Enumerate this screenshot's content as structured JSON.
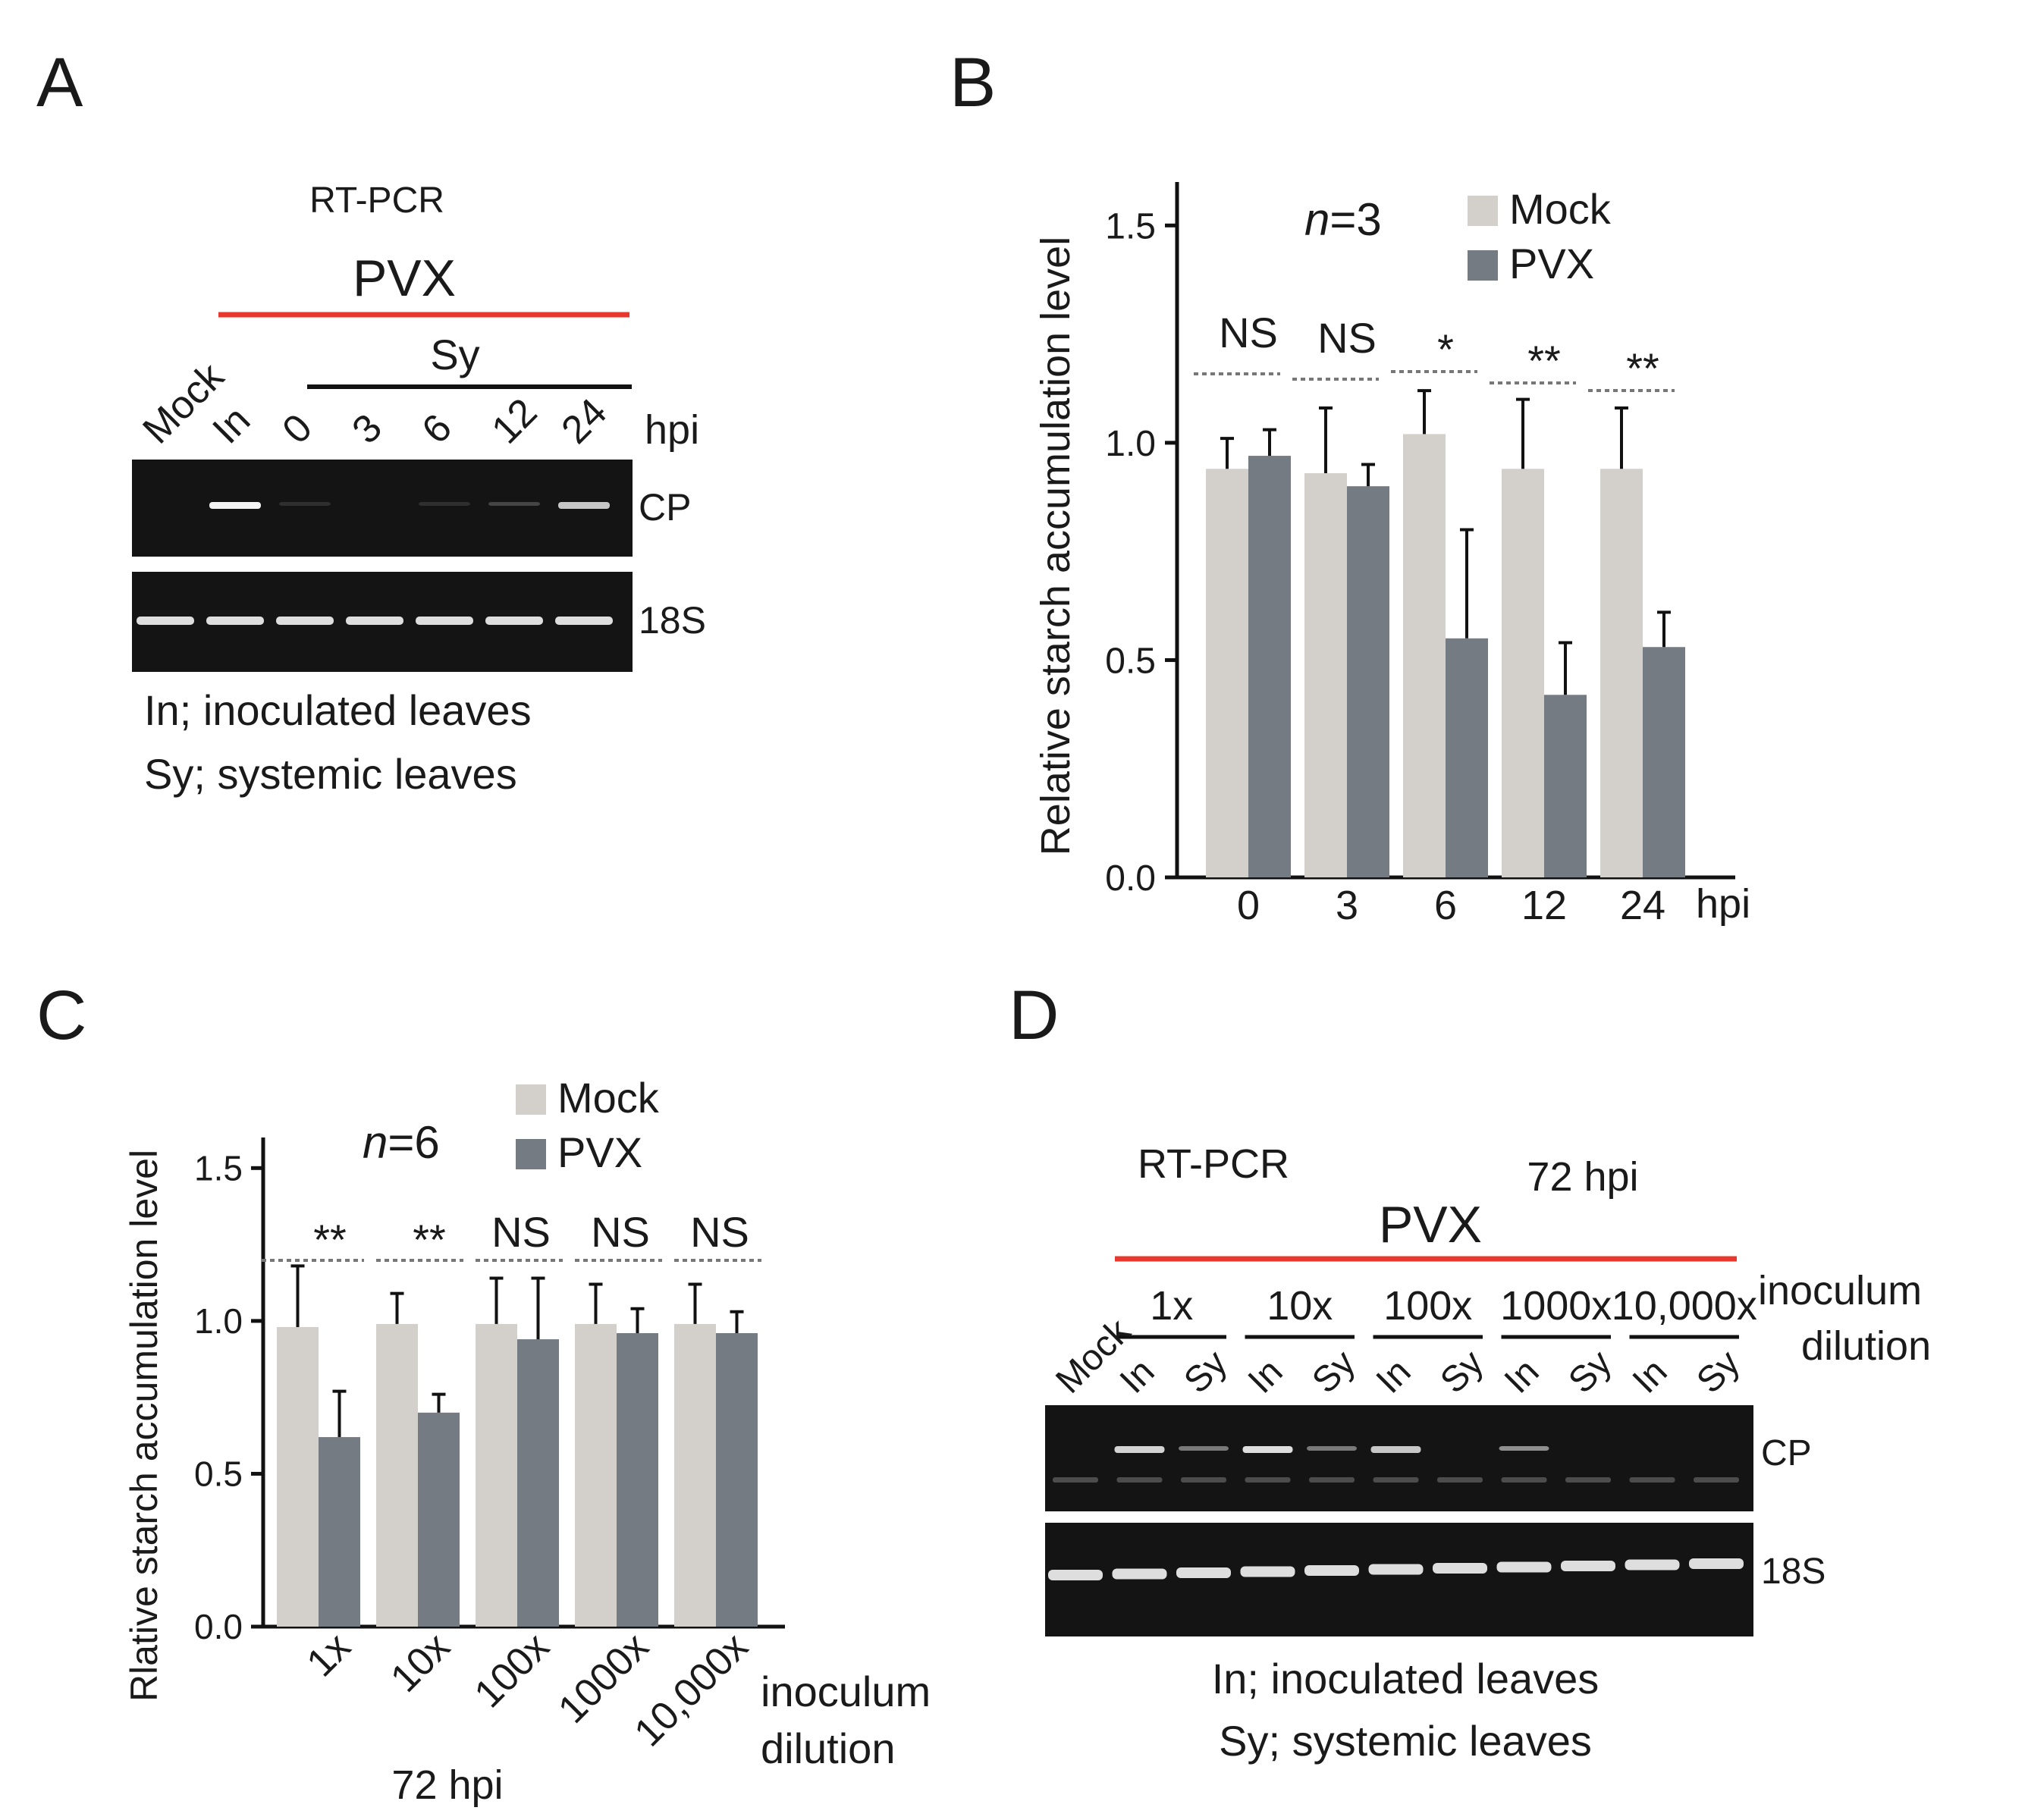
{
  "colors": {
    "mock": "#d3d0cc",
    "pvx": "#747b83",
    "accent_red": "#e8382d",
    "gel_bg": "#141414",
    "band": "#f4f4f4"
  },
  "panel_a": {
    "letter": "A",
    "method": "RT-PCR",
    "virus": "PVX",
    "sy_group_label": "Sy",
    "lane_labels": [
      "Mock",
      "In",
      "0",
      "3",
      "6",
      "12",
      "24"
    ],
    "unit": "hpi",
    "row_labels": [
      "CP",
      "18S"
    ],
    "cp_band_intensity": [
      0.0,
      1.0,
      0.05,
      0.0,
      0.12,
      0.22,
      0.8
    ],
    "legend_lines": [
      "In; inoculated leaves",
      "Sy; systemic leaves"
    ]
  },
  "panel_d": {
    "letter": "D",
    "method": "RT-PCR",
    "timepoint": "72 hpi",
    "virus": "PVX",
    "lane_mock": "Mock",
    "dilution_groups": [
      "1x",
      "10x",
      "100x",
      "1000x",
      "10,000x"
    ],
    "lane_sub": [
      "In",
      "Sy"
    ],
    "axis_title_line1": "inoculum",
    "axis_title_line2": "dilution",
    "row_labels": [
      "CP",
      "18S"
    ],
    "cp_band_intensity": [
      0.0,
      0.85,
      0.45,
      0.9,
      0.45,
      0.8,
      0.0,
      0.55,
      0.0,
      0.0,
      0.0
    ],
    "legend_lines": [
      "In; inoculated leaves",
      "Sy; systemic leaves"
    ]
  },
  "chart_data": [
    {
      "id": "B",
      "type": "bar",
      "panel_letter": "B",
      "categories": [
        "0",
        "3",
        "6",
        "12",
        "24"
      ],
      "x_unit": "hpi",
      "ylabel": "Relative starch accumulation level",
      "ylim": [
        0,
        1.6
      ],
      "yticks": [
        0.0,
        0.5,
        1.0,
        1.5
      ],
      "ytick_labels": [
        "0.0",
        "0.5",
        "1.0",
        "1.5"
      ],
      "n_label_italic": "n",
      "n_label_rest": "=3",
      "legend": [
        "Mock",
        "PVX"
      ],
      "series": [
        {
          "name": "Mock",
          "values": [
            0.94,
            0.93,
            1.02,
            0.94,
            0.94
          ],
          "errors": [
            0.07,
            0.15,
            0.1,
            0.16,
            0.14
          ]
        },
        {
          "name": "PVX",
          "values": [
            0.97,
            0.9,
            0.55,
            0.42,
            0.53
          ],
          "errors": [
            0.06,
            0.05,
            0.25,
            0.12,
            0.08
          ]
        }
      ],
      "significance": [
        "NS",
        "NS",
        "*",
        "**",
        "**"
      ]
    },
    {
      "id": "C",
      "type": "bar",
      "panel_letter": "C",
      "categories": [
        "1x",
        "10x",
        "100x",
        "1000x",
        "10,000x"
      ],
      "xlabel_line1": "inoculum",
      "xlabel_line2": "dilution",
      "bottom_label": "72 hpi",
      "ylabel": "Rlative starch accumulation level",
      "ylim": [
        0,
        1.6
      ],
      "yticks": [
        0.0,
        0.5,
        1.0,
        1.5
      ],
      "ytick_labels": [
        "0.0",
        "0.5",
        "1.0",
        "1.5"
      ],
      "n_label_italic": "n",
      "n_label_rest": "=6",
      "legend": [
        "Mock",
        "PVX"
      ],
      "series": [
        {
          "name": "Mock",
          "values": [
            0.98,
            0.99,
            0.99,
            0.99,
            0.99
          ],
          "errors": [
            0.2,
            0.1,
            0.15,
            0.13,
            0.13
          ]
        },
        {
          "name": "PVX",
          "values": [
            0.62,
            0.7,
            0.94,
            0.96,
            0.96
          ],
          "errors": [
            0.15,
            0.06,
            0.2,
            0.08,
            0.07
          ]
        }
      ],
      "significance": [
        "**",
        "**",
        "NS",
        "NS",
        "NS"
      ]
    }
  ]
}
